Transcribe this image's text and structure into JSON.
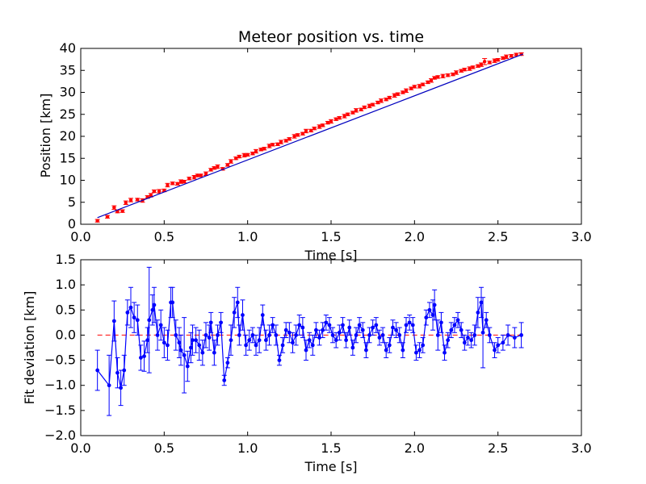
{
  "chart_data": [
    {
      "type": "scatter",
      "title": "Meteor position vs. time",
      "xlabel": "Time [s]",
      "ylabel": "Position [km]",
      "xlim": [
        0.0,
        3.0
      ],
      "ylim": [
        0,
        40
      ],
      "xticks": [
        "0.0",
        "0.5",
        "1.0",
        "1.5",
        "2.0",
        "2.5",
        "3.0"
      ],
      "yticks": [
        "0",
        "5",
        "10",
        "15",
        "20",
        "25",
        "30",
        "35",
        "40"
      ],
      "grid": false,
      "colors": {
        "data": "#ff0000",
        "fit": "#0000bf"
      },
      "fit_line": {
        "x": [
          0.1,
          2.65
        ],
        "y": [
          1.5,
          38.7
        ]
      },
      "series": [
        {
          "x": [
            0.1,
            0.16,
            0.2,
            0.22,
            0.25,
            0.27,
            0.3,
            0.34,
            0.37,
            0.4,
            0.42,
            0.44,
            0.47,
            0.5,
            0.52,
            0.55,
            0.58,
            0.6,
            0.62,
            0.65,
            0.68,
            0.7,
            0.72,
            0.75,
            0.78,
            0.8,
            0.82,
            0.85,
            0.88,
            0.9,
            0.93,
            0.95,
            0.98,
            1.0,
            1.03,
            1.05,
            1.08,
            1.1,
            1.13,
            1.15,
            1.18,
            1.2,
            1.23,
            1.25,
            1.28,
            1.3,
            1.33,
            1.35,
            1.38,
            1.4,
            1.43,
            1.45,
            1.48,
            1.5,
            1.53,
            1.55,
            1.58,
            1.6,
            1.63,
            1.65,
            1.68,
            1.7,
            1.73,
            1.75,
            1.78,
            1.8,
            1.83,
            1.85,
            1.88,
            1.9,
            1.93,
            1.95,
            1.98,
            2.0,
            2.03,
            2.05,
            2.08,
            2.1,
            2.12,
            2.14,
            2.17,
            2.2,
            2.23,
            2.25,
            2.28,
            2.3,
            2.33,
            2.35,
            2.38,
            2.4,
            2.42,
            2.45,
            2.48,
            2.5,
            2.53,
            2.55,
            2.58,
            2.61,
            2.64
          ],
          "y": [
            0.8,
            1.7,
            3.8,
            2.9,
            3.0,
            4.9,
            5.5,
            5.6,
            5.4,
            6.2,
            6.6,
            7.5,
            7.5,
            7.7,
            8.9,
            9.3,
            9.2,
            9.7,
            9.7,
            10.4,
            10.7,
            11.1,
            11.1,
            11.5,
            12.4,
            12.8,
            13.1,
            12.6,
            13.5,
            14.3,
            15.0,
            15.4,
            15.7,
            15.8,
            16.1,
            16.6,
            17.0,
            17.2,
            17.8,
            18.1,
            18.2,
            18.7,
            19.0,
            19.4,
            20.0,
            20.3,
            20.6,
            21.2,
            21.3,
            21.8,
            22.2,
            22.5,
            23.1,
            23.4,
            23.9,
            24.2,
            24.6,
            25.0,
            25.4,
            25.9,
            26.1,
            26.6,
            26.9,
            27.2,
            27.7,
            28.1,
            28.4,
            28.8,
            29.3,
            29.6,
            30.0,
            30.4,
            30.9,
            31.3,
            31.4,
            31.8,
            32.3,
            32.7,
            33.3,
            33.5,
            33.7,
            33.9,
            34.1,
            34.5,
            34.9,
            35.2,
            35.4,
            35.7,
            36.0,
            36.3,
            37.0,
            36.8,
            37.2,
            37.4,
            37.8,
            38.1,
            38.3,
            38.6,
            38.7
          ],
          "err": [
            0.3,
            0.3,
            0.4,
            0.3,
            0.3,
            0.4,
            0.4,
            0.3,
            0.4,
            0.3,
            0.4,
            0.3,
            0.4,
            0.3,
            0.4,
            0.3,
            0.3,
            0.4,
            0.3,
            0.3,
            0.4,
            0.3,
            0.3,
            0.4,
            0.3,
            0.3,
            0.4,
            0.3,
            0.3,
            0.4,
            0.3,
            0.3,
            0.4,
            0.3,
            0.3,
            0.4,
            0.3,
            0.3,
            0.4,
            0.3,
            0.3,
            0.4,
            0.3,
            0.3,
            0.4,
            0.3,
            0.3,
            0.4,
            0.3,
            0.3,
            0.4,
            0.3,
            0.3,
            0.4,
            0.3,
            0.3,
            0.4,
            0.3,
            0.3,
            0.4,
            0.3,
            0.3,
            0.4,
            0.3,
            0.3,
            0.4,
            0.3,
            0.3,
            0.4,
            0.3,
            0.3,
            0.4,
            0.3,
            0.3,
            0.4,
            0.3,
            0.3,
            0.4,
            0.3,
            0.3,
            0.4,
            0.3,
            0.3,
            0.4,
            0.3,
            0.3,
            0.4,
            0.3,
            0.3,
            0.4,
            0.7,
            0.3,
            0.4,
            0.3,
            0.3,
            0.4,
            0.3,
            0.3,
            0.3
          ]
        }
      ]
    },
    {
      "type": "line",
      "xlabel": "Time [s]",
      "ylabel": "Fit deviation [km]",
      "xlim": [
        0.0,
        3.0
      ],
      "ylim": [
        -2.0,
        1.5
      ],
      "xticks": [
        "0.0",
        "0.5",
        "1.0",
        "1.5",
        "2.0",
        "2.5",
        "3.0"
      ],
      "yticks": [
        "−2.0",
        "−1.5",
        "−1.0",
        "−0.5",
        "0.0",
        "0.5",
        "1.0",
        "1.5"
      ],
      "grid": false,
      "colors": {
        "data": "#0000ff",
        "zero_line": "#ff0000"
      },
      "zero_line": 0.0,
      "series": [
        {
          "x": [
            0.1,
            0.17,
            0.2,
            0.22,
            0.24,
            0.26,
            0.28,
            0.3,
            0.32,
            0.34,
            0.36,
            0.38,
            0.4,
            0.41,
            0.43,
            0.44,
            0.46,
            0.48,
            0.5,
            0.52,
            0.54,
            0.55,
            0.57,
            0.59,
            0.6,
            0.62,
            0.64,
            0.66,
            0.67,
            0.69,
            0.71,
            0.73,
            0.75,
            0.77,
            0.78,
            0.8,
            0.82,
            0.84,
            0.86,
            0.88,
            0.9,
            0.92,
            0.94,
            0.95,
            0.97,
            0.99,
            1.01,
            1.03,
            1.05,
            1.07,
            1.09,
            1.11,
            1.13,
            1.15,
            1.17,
            1.19,
            1.21,
            1.23,
            1.25,
            1.27,
            1.29,
            1.31,
            1.33,
            1.35,
            1.37,
            1.39,
            1.41,
            1.43,
            1.45,
            1.47,
            1.49,
            1.51,
            1.53,
            1.55,
            1.57,
            1.59,
            1.61,
            1.63,
            1.65,
            1.67,
            1.69,
            1.71,
            1.73,
            1.75,
            1.77,
            1.79,
            1.81,
            1.83,
            1.85,
            1.87,
            1.89,
            1.91,
            1.93,
            1.95,
            1.97,
            1.99,
            2.01,
            2.03,
            2.05,
            2.07,
            2.09,
            2.11,
            2.12,
            2.14,
            2.16,
            2.18,
            2.2,
            2.22,
            2.24,
            2.26,
            2.28,
            2.3,
            2.32,
            2.34,
            2.36,
            2.38,
            2.4,
            2.41,
            2.43,
            2.45,
            2.48,
            2.5,
            2.53,
            2.56,
            2.6,
            2.64
          ],
          "y": [
            -0.7,
            -1.0,
            0.28,
            -0.75,
            -1.05,
            -0.7,
            0.45,
            0.55,
            0.35,
            0.3,
            -0.45,
            -0.42,
            -0.1,
            0.3,
            0.5,
            0.6,
            0.0,
            0.2,
            -0.15,
            -0.2,
            0.65,
            0.65,
            0.0,
            -0.15,
            -0.3,
            -0.4,
            -0.62,
            -0.25,
            -0.1,
            -0.1,
            -0.2,
            -0.35,
            0.0,
            -0.05,
            0.25,
            -0.35,
            0.0,
            0.25,
            -0.9,
            -0.55,
            -0.1,
            0.45,
            0.65,
            0.0,
            0.4,
            -0.2,
            -0.1,
            0.0,
            -0.2,
            -0.1,
            0.4,
            -0.1,
            0.0,
            0.2,
            0.0,
            -0.5,
            -0.2,
            0.1,
            0.05,
            -0.15,
            0.0,
            0.2,
            0.15,
            -0.3,
            -0.1,
            -0.2,
            0.1,
            -0.05,
            0.1,
            0.25,
            0.2,
            0.0,
            -0.1,
            0.05,
            0.2,
            -0.1,
            0.15,
            -0.25,
            0.0,
            0.2,
            0.1,
            -0.3,
            0.0,
            0.15,
            0.2,
            -0.05,
            0.0,
            -0.3,
            -0.2,
            0.15,
            0.1,
            0.0,
            -0.3,
            0.2,
            0.25,
            0.2,
            -0.35,
            -0.3,
            -0.2,
            0.35,
            0.5,
            0.4,
            0.6,
            0.0,
            0.25,
            -0.35,
            -0.1,
            0.1,
            0.2,
            0.3,
            0.1,
            -0.15,
            -0.05,
            -0.1,
            0.0,
            0.45,
            0.65,
            0.05,
            0.3,
            0.0,
            -0.3,
            -0.2,
            -0.15,
            0.0,
            -0.05,
            0.0
          ],
          "err": [
            0.4,
            0.6,
            0.4,
            0.3,
            0.35,
            0.3,
            0.25,
            0.4,
            0.3,
            0.3,
            0.25,
            0.3,
            0.25,
            1.05,
            0.3,
            0.35,
            0.3,
            0.3,
            0.3,
            0.3,
            0.3,
            0.3,
            0.3,
            0.3,
            0.3,
            0.75,
            0.3,
            0.3,
            0.3,
            0.25,
            0.3,
            0.25,
            0.25,
            0.25,
            0.2,
            0.25,
            0.2,
            0.2,
            0.1,
            0.1,
            0.3,
            0.3,
            0.3,
            0.2,
            0.3,
            0.2,
            0.2,
            0.15,
            0.2,
            0.25,
            0.2,
            0.2,
            0.2,
            0.15,
            0.2,
            0.1,
            0.15,
            0.15,
            0.2,
            0.2,
            0.2,
            0.2,
            0.2,
            0.2,
            0.15,
            0.2,
            0.15,
            0.15,
            0.15,
            0.15,
            0.15,
            0.15,
            0.15,
            0.15,
            0.15,
            0.15,
            0.15,
            0.15,
            0.15,
            0.15,
            0.15,
            0.15,
            0.15,
            0.15,
            0.15,
            0.15,
            0.15,
            0.15,
            0.15,
            0.15,
            0.15,
            0.15,
            0.15,
            0.15,
            0.15,
            0.15,
            0.15,
            0.15,
            0.15,
            0.15,
            0.15,
            0.3,
            0.3,
            0.3,
            0.2,
            0.15,
            0.15,
            0.15,
            0.15,
            0.15,
            0.15,
            0.15,
            0.15,
            0.15,
            0.2,
            0.3,
            0.3,
            0.7,
            0.15,
            0.15,
            0.15,
            0.15,
            0.15,
            0.2,
            0.2,
            0.25
          ]
        }
      ]
    }
  ]
}
